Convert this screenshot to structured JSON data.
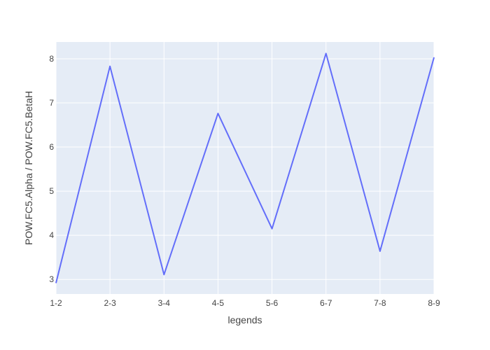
{
  "chart_data": {
    "type": "line",
    "title": "",
    "xlabel": "legends",
    "ylabel": "POW.FC5.Alpha / POW.FC5.BetaH",
    "categories": [
      "1-2",
      "2-3",
      "3-4",
      "4-5",
      "5-6",
      "6-7",
      "7-8",
      "8-9"
    ],
    "series": [
      {
        "name": "",
        "values": [
          2.92,
          7.83,
          3.11,
          6.76,
          4.15,
          8.12,
          3.64,
          8.03
        ]
      }
    ],
    "ylim": [
      2.67,
      8.38
    ],
    "yticks": [
      3,
      4,
      5,
      6,
      7,
      8
    ],
    "grid": true,
    "colors": {
      "plot_background": "#E5ECF6",
      "grid": "#FFFFFF",
      "line": "#636EFA",
      "text": "#444444"
    }
  }
}
